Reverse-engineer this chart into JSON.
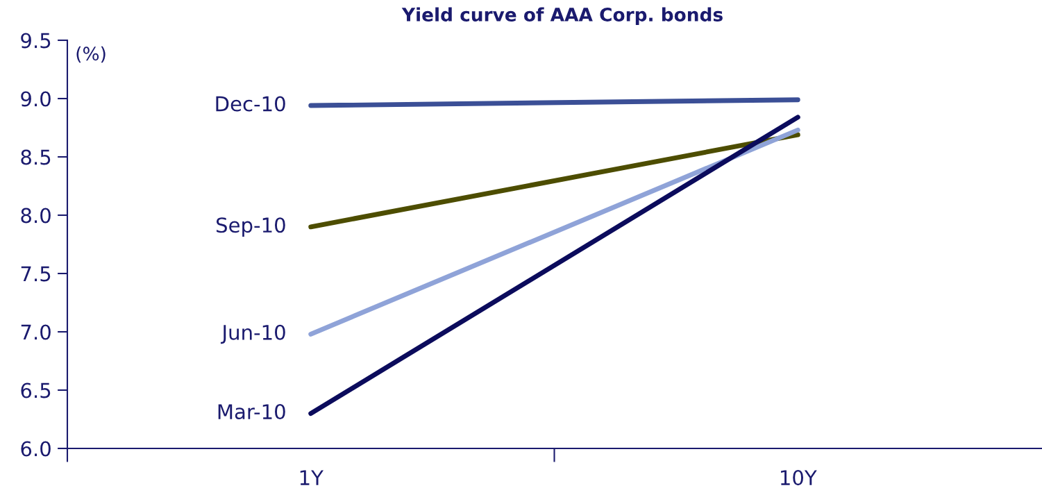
{
  "chart_data": {
    "type": "line",
    "title": "Yield curve of AAA Corp. bonds",
    "ylabel": "(%)",
    "categories": [
      "1Y",
      "10Y"
    ],
    "series": [
      {
        "name": "Dec-10",
        "color": "#3b4f96",
        "values": [
          8.94,
          8.99
        ]
      },
      {
        "name": "Sep-10",
        "color": "#4d4d00",
        "values": [
          7.9,
          8.69
        ]
      },
      {
        "name": "Jun-10",
        "color": "#8fa3d8",
        "values": [
          6.98,
          8.73
        ]
      },
      {
        "name": "Mar-10",
        "color": "#0b0b5c",
        "values": [
          6.3,
          8.84
        ]
      }
    ],
    "ylim": [
      6.0,
      9.5
    ],
    "yticks": [
      {
        "value": 6.0,
        "label": "6.0"
      },
      {
        "value": 6.5,
        "label": "6.5"
      },
      {
        "value": 7.0,
        "label": "7.0"
      },
      {
        "value": 7.5,
        "label": "7.5"
      },
      {
        "value": 8.0,
        "label": "8.0"
      },
      {
        "value": 8.5,
        "label": "8.5"
      },
      {
        "value": 9.0,
        "label": "9.0"
      },
      {
        "value": 9.5,
        "label": "9.5"
      }
    ],
    "grid": false,
    "legend": false,
    "marker": "none",
    "line_style": "solid"
  }
}
